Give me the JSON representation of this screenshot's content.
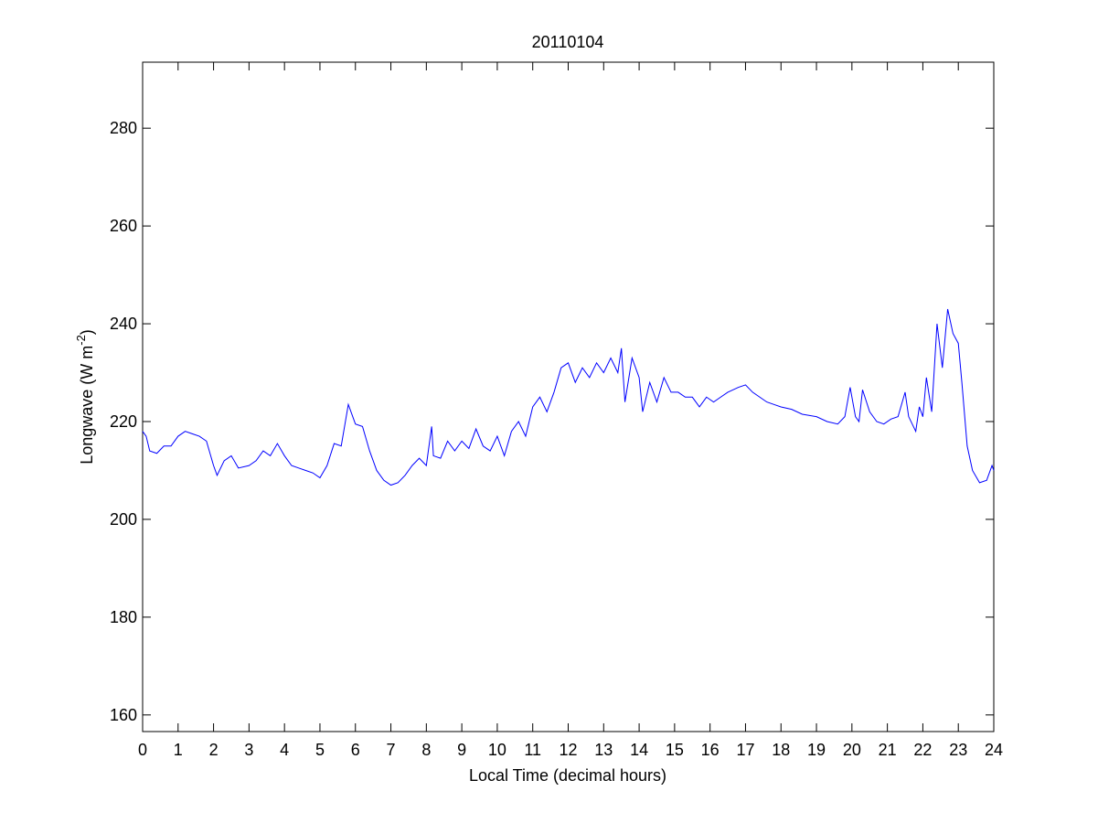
{
  "chart_data": {
    "type": "line",
    "title": "20110104",
    "xlabel": "Local Time (decimal hours)",
    "ylabel": [
      "Longwave (W m",
      "-2",
      ")"
    ],
    "xlim": [
      0,
      24
    ],
    "ylim": [
      156.6,
      293.5
    ],
    "xticks": [
      0,
      1,
      2,
      3,
      4,
      5,
      6,
      7,
      8,
      9,
      10,
      11,
      12,
      13,
      14,
      15,
      16,
      17,
      18,
      19,
      20,
      21,
      22,
      23,
      24
    ],
    "yticks": [
      160,
      180,
      200,
      220,
      240,
      260,
      280
    ],
    "grid": false,
    "box": true,
    "series": [
      {
        "color": "#0000ff",
        "x": [
          0,
          0.1,
          0.2,
          0.4,
          0.6,
          0.8,
          1.0,
          1.2,
          1.4,
          1.6,
          1.8,
          2.0,
          2.1,
          2.3,
          2.5,
          2.7,
          3.0,
          3.2,
          3.4,
          3.6,
          3.8,
          4.0,
          4.2,
          4.4,
          4.6,
          4.8,
          5.0,
          5.2,
          5.4,
          5.6,
          5.8,
          6.0,
          6.2,
          6.4,
          6.6,
          6.8,
          7.0,
          7.2,
          7.4,
          7.6,
          7.8,
          8.0,
          8.15,
          8.2,
          8.4,
          8.6,
          8.8,
          9.0,
          9.2,
          9.4,
          9.6,
          9.8,
          10.0,
          10.2,
          10.4,
          10.6,
          10.8,
          11.0,
          11.2,
          11.4,
          11.6,
          11.8,
          12.0,
          12.2,
          12.4,
          12.6,
          12.8,
          13.0,
          13.2,
          13.4,
          13.5,
          13.6,
          13.8,
          14.0,
          14.1,
          14.3,
          14.5,
          14.7,
          14.9,
          15.1,
          15.3,
          15.5,
          15.7,
          15.9,
          16.1,
          16.3,
          16.5,
          16.8,
          17.0,
          17.2,
          17.4,
          17.6,
          17.8,
          18.0,
          18.3,
          18.6,
          19.0,
          19.3,
          19.6,
          19.8,
          19.95,
          20.1,
          20.2,
          20.3,
          20.5,
          20.7,
          20.9,
          21.1,
          21.3,
          21.5,
          21.6,
          21.8,
          21.9,
          22.0,
          22.1,
          22.25,
          22.4,
          22.55,
          22.7,
          22.85,
          23.0,
          23.1,
          23.25,
          23.4,
          23.6,
          23.8,
          23.95,
          24.0
        ],
        "values": [
          218,
          217,
          214,
          213.5,
          215,
          215,
          217,
          218,
          217.5,
          217,
          216,
          211,
          209,
          212,
          213,
          210.5,
          211,
          212,
          214,
          213,
          215.5,
          213,
          211,
          210.5,
          210,
          209.5,
          208.5,
          211,
          215.5,
          215,
          223.5,
          219.5,
          219,
          214,
          210,
          208,
          207,
          207.5,
          209,
          211,
          212.5,
          211,
          219,
          213,
          212.5,
          216,
          214,
          216,
          214.5,
          218.5,
          215,
          214,
          217,
          213,
          218,
          220,
          217,
          223,
          225,
          222,
          226,
          231,
          232,
          228,
          231,
          229,
          232,
          230,
          233,
          230,
          235,
          224,
          233,
          229,
          222,
          228,
          224,
          229,
          226,
          226,
          225,
          225,
          223,
          225,
          224,
          225,
          226,
          227,
          227.5,
          226,
          225,
          224,
          223.5,
          223,
          222.5,
          221.5,
          221,
          220,
          219.5,
          221,
          227,
          221,
          220,
          226.5,
          222,
          220,
          219.5,
          220.5,
          221,
          226,
          221,
          218,
          223,
          221,
          229,
          222,
          240,
          231,
          243,
          238,
          236,
          228,
          215,
          210,
          207.5,
          208,
          211,
          210
        ]
      }
    ]
  }
}
